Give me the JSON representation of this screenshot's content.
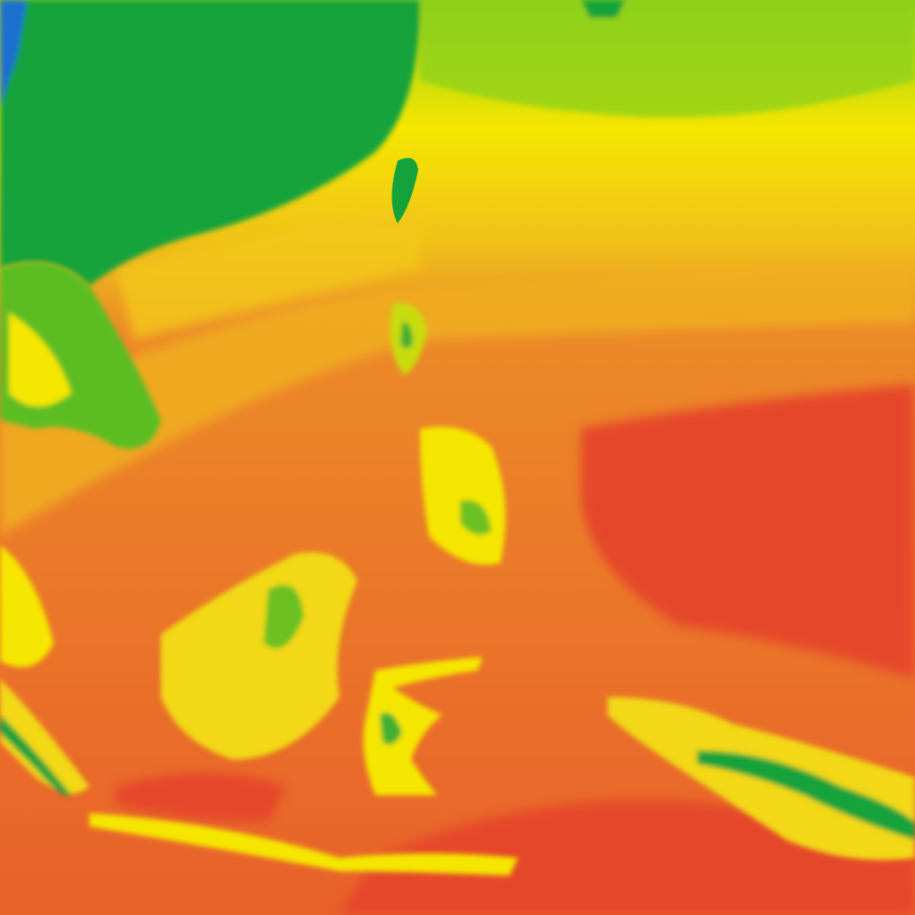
{
  "map": {
    "type": "temperature-heatmap-tile",
    "palette": {
      "coldest": "#1a6fd0",
      "cold": "#13a33a",
      "cool": "#8fd11a",
      "mild": "#f5e600",
      "warm": "#f0b020",
      "hot": "#ec7a28",
      "hottest": "#e5462a"
    }
  }
}
